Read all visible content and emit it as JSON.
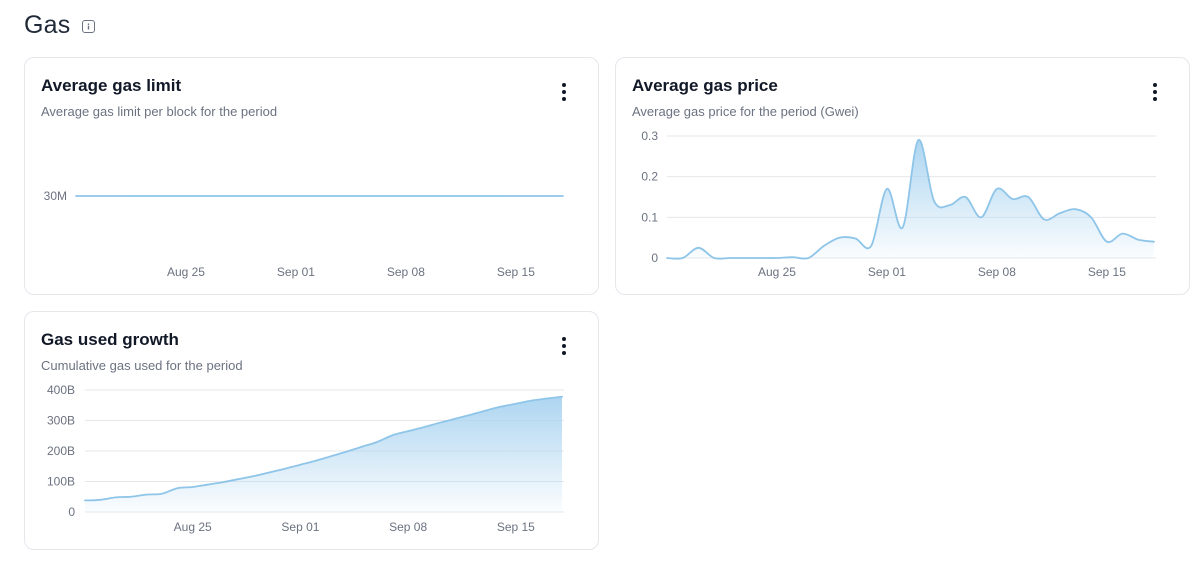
{
  "page": {
    "title": "Gas",
    "info_icon": "info-icon"
  },
  "colors": {
    "line": "#8ec5e8",
    "fill_top": "#a9d3f0",
    "grid": "#e5e7eb",
    "border": "#e5e7eb",
    "muted_text": "#6b7280"
  },
  "cards": [
    {
      "title": "Average gas limit",
      "subtitle": "Average gas limit per block for the period",
      "menu_icon": "more-vertical-icon"
    },
    {
      "title": "Average gas price",
      "subtitle": "Average gas price for the period (Gwei)",
      "menu_icon": "more-vertical-icon"
    },
    {
      "title": "Gas used growth",
      "subtitle": "Cumulative gas used for the period",
      "menu_icon": "more-vertical-icon"
    }
  ],
  "chart_data": [
    {
      "type": "line",
      "title": "Average gas limit",
      "subtitle": "Average gas limit per block for the period",
      "x_ticks": [
        "Aug 25",
        "Sep 01",
        "Sep 08",
        "Sep 15"
      ],
      "y_ticks": [
        "30M"
      ],
      "ylim": [
        0,
        60
      ],
      "y_unit": "M",
      "grid": false,
      "area_fill": false,
      "x": [
        "Aug 18",
        "Aug 19",
        "Aug 20",
        "Aug 21",
        "Aug 22",
        "Aug 23",
        "Aug 24",
        "Aug 25",
        "Aug 26",
        "Aug 27",
        "Aug 28",
        "Aug 29",
        "Aug 30",
        "Aug 31",
        "Sep 01",
        "Sep 02",
        "Sep 03",
        "Sep 04",
        "Sep 05",
        "Sep 06",
        "Sep 07",
        "Sep 08",
        "Sep 09",
        "Sep 10",
        "Sep 11",
        "Sep 12",
        "Sep 13",
        "Sep 14",
        "Sep 15",
        "Sep 16",
        "Sep 17",
        "Sep 18"
      ],
      "values": [
        30,
        30,
        30,
        30,
        30,
        30,
        30,
        30,
        30,
        30,
        30,
        30,
        30,
        30,
        30,
        30,
        30,
        30,
        30,
        30,
        30,
        30,
        30,
        30,
        30,
        30,
        30,
        30,
        30,
        30,
        30,
        30
      ]
    },
    {
      "type": "area",
      "title": "Average gas price",
      "subtitle": "Average gas price for the period (Gwei)",
      "x_ticks": [
        "Aug 25",
        "Sep 01",
        "Sep 08",
        "Sep 15"
      ],
      "y_ticks": [
        "0",
        "0.1",
        "0.2",
        "0.3"
      ],
      "ylim": [
        0,
        0.3
      ],
      "grid": true,
      "area_fill": true,
      "x": [
        "Aug 18",
        "Aug 19",
        "Aug 20",
        "Aug 21",
        "Aug 22",
        "Aug 23",
        "Aug 24",
        "Aug 25",
        "Aug 26",
        "Aug 27",
        "Aug 28",
        "Aug 29",
        "Aug 30",
        "Aug 31",
        "Sep 01",
        "Sep 02",
        "Sep 03",
        "Sep 04",
        "Sep 05",
        "Sep 06",
        "Sep 07",
        "Sep 08",
        "Sep 09",
        "Sep 10",
        "Sep 11",
        "Sep 12",
        "Sep 13",
        "Sep 14",
        "Sep 15",
        "Sep 16",
        "Sep 17",
        "Sep 18"
      ],
      "values": [
        0.0,
        0.0,
        0.025,
        0.0,
        0.0,
        0.0,
        0.0,
        0.0,
        0.002,
        0.0,
        0.03,
        0.05,
        0.048,
        0.03,
        0.17,
        0.075,
        0.29,
        0.14,
        0.13,
        0.15,
        0.1,
        0.17,
        0.145,
        0.15,
        0.095,
        0.11,
        0.12,
        0.1,
        0.04,
        0.06,
        0.045,
        0.04
      ]
    },
    {
      "type": "area",
      "title": "Gas used growth",
      "subtitle": "Cumulative gas used for the period",
      "x_ticks": [
        "Aug 25",
        "Sep 01",
        "Sep 08",
        "Sep 15"
      ],
      "y_ticks": [
        "0",
        "100B",
        "200B",
        "300B",
        "400B"
      ],
      "ylim": [
        0,
        400
      ],
      "y_unit": "B",
      "grid": true,
      "area_fill": true,
      "x": [
        "Aug 18",
        "Aug 19",
        "Aug 20",
        "Aug 21",
        "Aug 22",
        "Aug 23",
        "Aug 24",
        "Aug 25",
        "Aug 26",
        "Aug 27",
        "Aug 28",
        "Aug 29",
        "Aug 30",
        "Aug 31",
        "Sep 01",
        "Sep 02",
        "Sep 03",
        "Sep 04",
        "Sep 05",
        "Sep 06",
        "Sep 07",
        "Sep 08",
        "Sep 09",
        "Sep 10",
        "Sep 11",
        "Sep 12",
        "Sep 13",
        "Sep 14",
        "Sep 15",
        "Sep 16",
        "Sep 17",
        "Sep 18"
      ],
      "values": [
        38,
        40,
        48,
        50,
        57,
        60,
        78,
        82,
        90,
        98,
        108,
        118,
        130,
        142,
        155,
        168,
        183,
        198,
        214,
        230,
        252,
        265,
        278,
        292,
        305,
        318,
        332,
        345,
        355,
        365,
        372,
        378
      ]
    }
  ]
}
